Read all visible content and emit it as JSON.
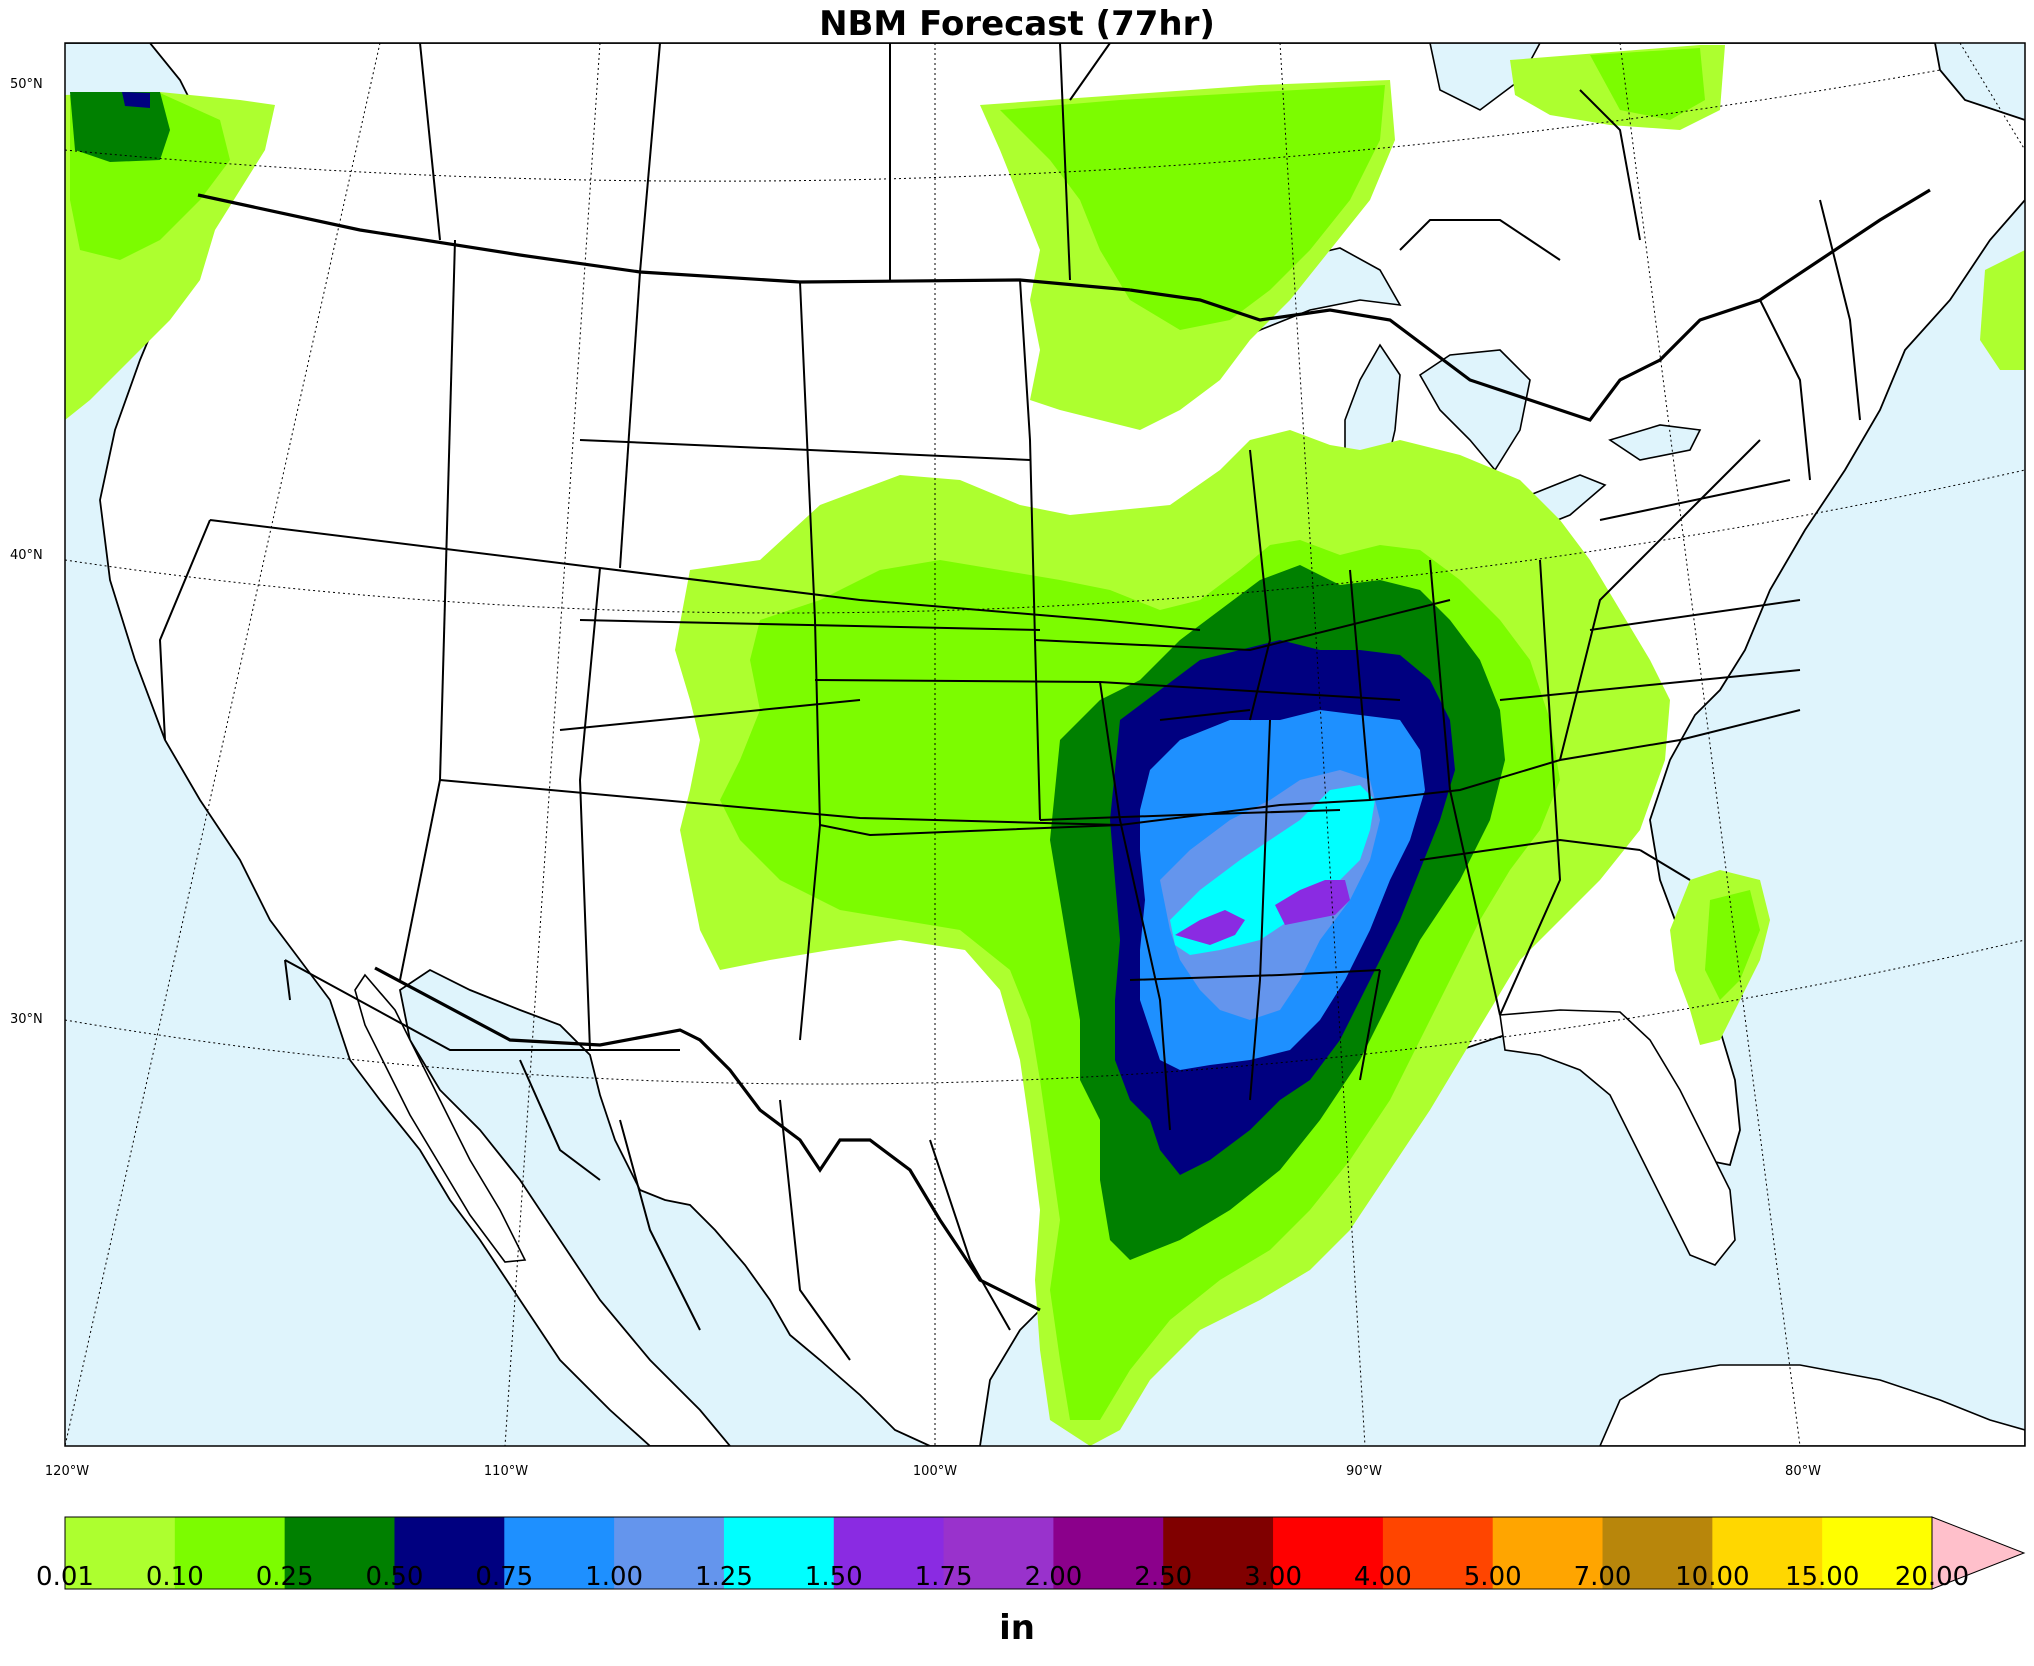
{
  "title": "NBM Forecast (77hr)",
  "lat_labels": [
    "50°N",
    "40°N",
    "30°N"
  ],
  "lon_labels": [
    "120°W",
    "110°W",
    "100°W",
    "90°W",
    "80°W"
  ],
  "colors": {
    "ocean": "#dff4fc",
    "land": "#ffffff",
    "bins": [
      "#adff2f",
      "#7cfc00",
      "#008000",
      "#000080",
      "#1e90ff",
      "#6495ed",
      "#00ffff",
      "#8a2be2",
      "#9932cc",
      "#8b008b",
      "#800000",
      "#ff0000",
      "#ff4500",
      "#ffa500",
      "#b8860b",
      "#ffd700",
      "#ffff00"
    ],
    "extend": "#ffc0cb"
  },
  "colorbar": {
    "ticks": [
      "0.01",
      "0.10",
      "0.25",
      "0.50",
      "0.75",
      "1.00",
      "1.25",
      "1.50",
      "1.75",
      "2.00",
      "2.50",
      "3.00",
      "4.00",
      "5.00",
      "7.00",
      "10.00",
      "15.00",
      "20.00"
    ],
    "units": "in"
  }
}
